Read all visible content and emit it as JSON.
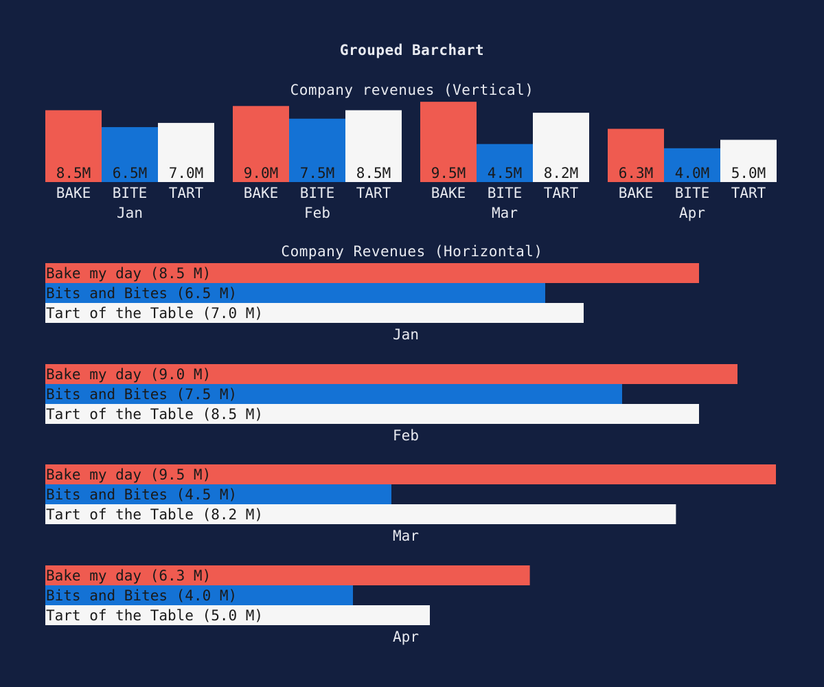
{
  "page": {
    "title": "Grouped Barchart"
  },
  "colors": {
    "background": "#131f3f",
    "panel": "#131f3f",
    "text": "#e8eaf0",
    "bar_text": "#1a1a1a",
    "bake": "#ef5b50",
    "bite": "#1472d5",
    "tart": "#f6f6f6"
  },
  "chart_data": [
    {
      "type": "bar",
      "orientation": "vertical",
      "title": "Company revenues (Vertical)",
      "categories": [
        "Jan",
        "Feb",
        "Mar",
        "Apr"
      ],
      "series": [
        {
          "name": "BAKE",
          "color": "#ef5b50",
          "values": [
            8.5,
            9.0,
            9.5,
            6.3
          ],
          "labels": [
            "8.5M",
            "9.0M",
            "9.5M",
            "6.3M"
          ]
        },
        {
          "name": "BITE",
          "color": "#1472d5",
          "values": [
            6.5,
            7.5,
            4.5,
            4.0
          ],
          "labels": [
            "6.5M",
            "7.5M",
            "4.5M",
            "4.0M"
          ]
        },
        {
          "name": "TART",
          "color": "#f6f6f6",
          "values": [
            7.0,
            8.5,
            8.2,
            5.0
          ],
          "labels": [
            "7.0M",
            "8.5M",
            "8.2M",
            "5.0M"
          ]
        }
      ]
    },
    {
      "type": "bar",
      "orientation": "horizontal",
      "title": "Company Revenues (Horizontal)",
      "categories": [
        "Jan",
        "Feb",
        "Mar",
        "Apr"
      ],
      "series": [
        {
          "name": "Bake my day",
          "color": "#ef5b50",
          "values": [
            8.5,
            9.0,
            9.5,
            6.3
          ],
          "labels": [
            "Bake my day (8.5 M)",
            "Bake my day (9.0 M)",
            "Bake my day (9.5 M)",
            "Bake my day (6.3 M)"
          ]
        },
        {
          "name": "Bits and Bites",
          "color": "#1472d5",
          "values": [
            6.5,
            7.5,
            4.5,
            4.0
          ],
          "labels": [
            "Bits and Bites (6.5 M)",
            "Bits and Bites (7.5 M)",
            "Bits and Bites (4.5 M)",
            "Bits and Bites (4.0 M)"
          ]
        },
        {
          "name": "Tart of the Table",
          "color": "#f6f6f6",
          "values": [
            7.0,
            8.5,
            8.2,
            5.0
          ],
          "labels": [
            "Tart of the Table (7.0 M)",
            "Tart of the Table (8.5 M)",
            "Tart of the Table (8.2 M)",
            "Tart of the Table (5.0 M)"
          ]
        }
      ]
    }
  ]
}
